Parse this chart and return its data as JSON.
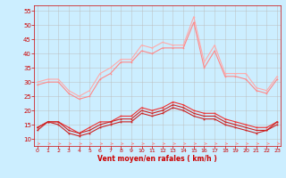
{
  "x": [
    0,
    1,
    2,
    3,
    4,
    5,
    6,
    7,
    8,
    9,
    10,
    11,
    12,
    13,
    14,
    15,
    16,
    17,
    18,
    19,
    20,
    21,
    22,
    23
  ],
  "rafales_max": [
    30,
    31,
    31,
    27,
    25,
    27,
    33,
    35,
    38,
    38,
    43,
    42,
    44,
    43,
    43,
    53,
    37,
    43,
    33,
    33,
    33,
    28,
    27,
    32
  ],
  "rafales_min": [
    29,
    30,
    30,
    26,
    24,
    25,
    31,
    33,
    37,
    37,
    41,
    40,
    42,
    42,
    42,
    51,
    35,
    41,
    32,
    32,
    31,
    27,
    26,
    31
  ],
  "vent_max": [
    14,
    16,
    16,
    14,
    12,
    14,
    16,
    16,
    18,
    18,
    21,
    20,
    21,
    23,
    22,
    20,
    19,
    19,
    17,
    16,
    15,
    14,
    14,
    16
  ],
  "vent_avg": [
    14,
    16,
    16,
    13,
    12,
    13,
    15,
    16,
    17,
    17,
    20,
    19,
    20,
    22,
    21,
    19,
    18,
    18,
    16,
    15,
    14,
    13,
    13,
    16
  ],
  "vent_min": [
    13,
    16,
    15,
    12,
    11,
    12,
    14,
    15,
    16,
    16,
    19,
    18,
    19,
    21,
    20,
    18,
    17,
    17,
    15,
    14,
    13,
    12,
    13,
    15
  ],
  "bg_color": "#cceeff",
  "grid_color": "#bbbbbb",
  "color_rafales_light": "#ffaaaa",
  "color_rafales_dark": "#ff8888",
  "color_vent_dark": "#cc2222",
  "color_vent_med": "#ee3333",
  "color_arrow": "#ff8888",
  "xlabel": "Vent moyen/en rafales ( km/h )",
  "xlabel_color": "#cc0000",
  "tick_color": "#cc0000",
  "yticks": [
    10,
    15,
    20,
    25,
    30,
    35,
    40,
    45,
    50,
    55
  ],
  "xticks": [
    0,
    1,
    2,
    3,
    4,
    5,
    6,
    7,
    8,
    9,
    10,
    11,
    12,
    13,
    14,
    15,
    16,
    17,
    18,
    19,
    20,
    21,
    22,
    23
  ],
  "ylim": [
    7.5,
    57
  ],
  "xlim": [
    -0.3,
    23.3
  ]
}
